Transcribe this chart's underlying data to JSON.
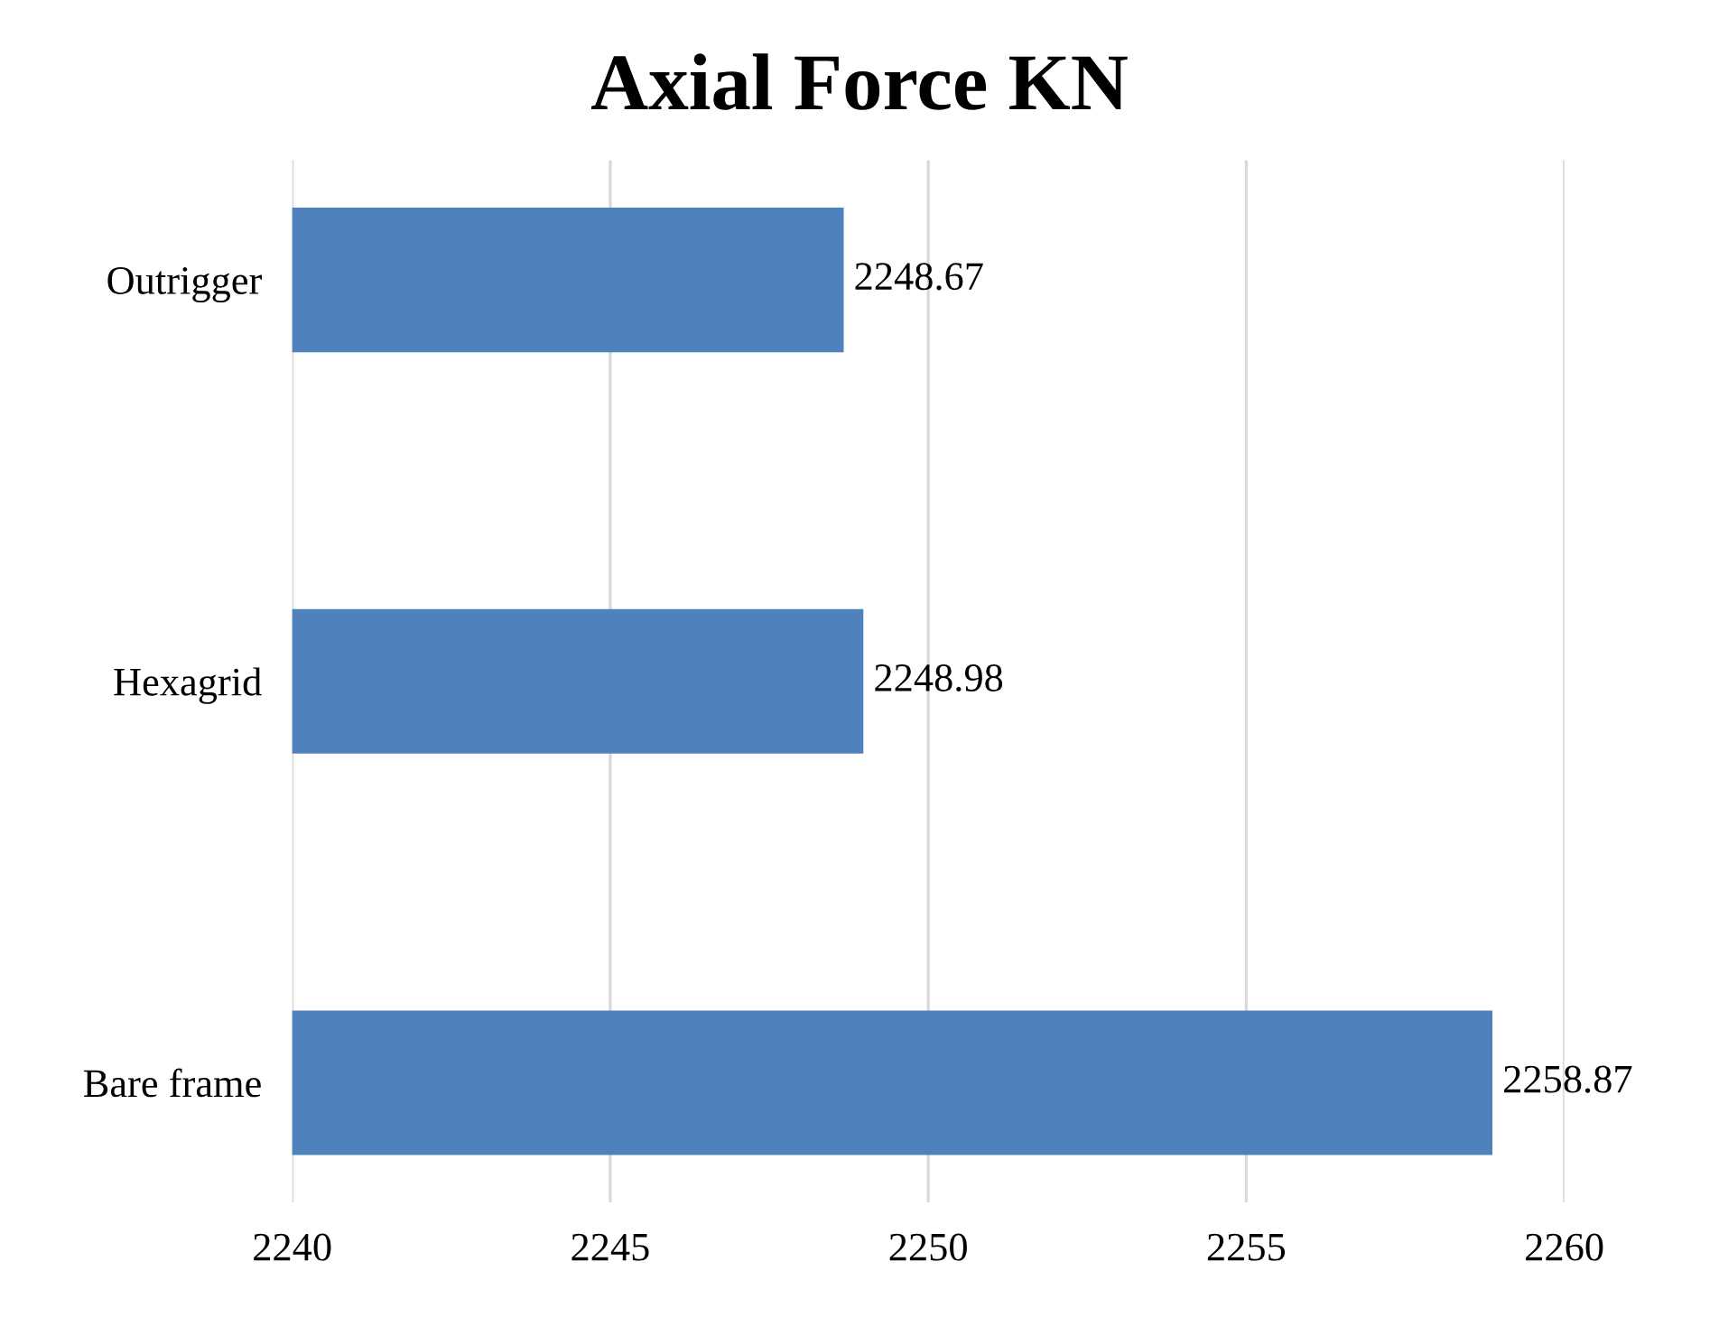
{
  "chart_data": {
    "type": "bar",
    "orientation": "horizontal",
    "title": "Axial Force KN",
    "categories": [
      "Outrigger",
      "Hexagrid",
      "Bare frame"
    ],
    "values": [
      2248.67,
      2248.98,
      2258.87
    ],
    "color": "#4f81bd",
    "xlim": [
      2240,
      2260
    ],
    "xticks": [
      2240,
      2245,
      2250,
      2255,
      2260
    ],
    "grid": "x",
    "data_labels": true
  }
}
